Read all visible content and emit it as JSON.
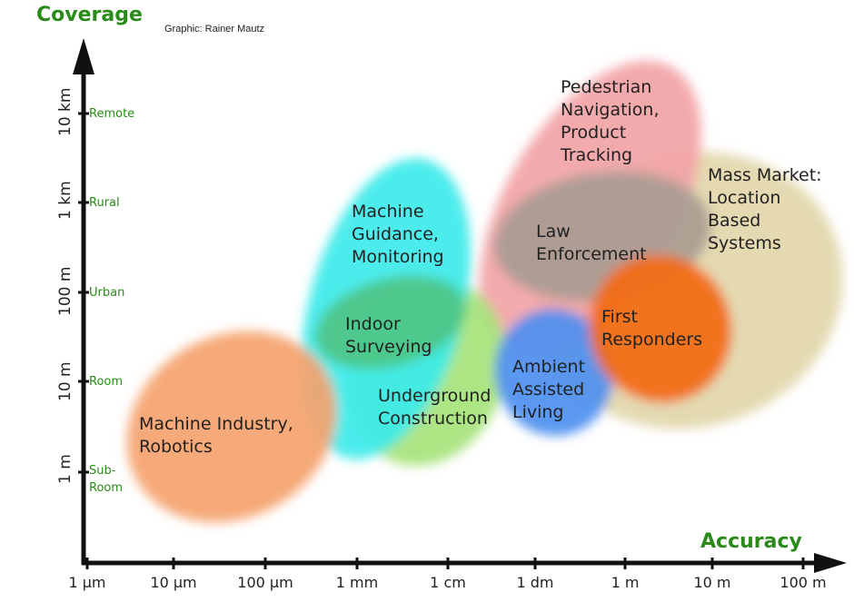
{
  "header": {
    "y_axis_title": "Coverage",
    "x_axis_title": "Accuracy",
    "credit": "Graphic: Rainer Mautz"
  },
  "y_axis": {
    "ticks": [
      {
        "value": "10 km",
        "category": "Remote"
      },
      {
        "value": "1 km",
        "category": "Rural"
      },
      {
        "value": "100 m",
        "category": "Urban"
      },
      {
        "value": "10 m",
        "category": "Room"
      },
      {
        "value": "1 m",
        "category": "Sub-\nRoom"
      }
    ]
  },
  "x_axis": {
    "ticks": [
      "1 µm",
      "10 µm",
      "100 µm",
      "1 mm",
      "1 cm",
      "1 dm",
      "1 m",
      "10 m",
      "100 m"
    ]
  },
  "regions": [
    {
      "id": "mass-market",
      "label": "Mass Market:\nLocation\nBased\nSystems",
      "color": "#e2d6aa"
    },
    {
      "id": "pedestrian",
      "label": "Pedestrian\nNavigation,\nProduct\nTracking",
      "color": "#f2a3a6"
    },
    {
      "id": "law-enforcement",
      "label": "Law\nEnforcement",
      "color": "#a99c92"
    },
    {
      "id": "ambient",
      "label": "Ambient\nAssisted\nLiving",
      "color": "#4d8ff0"
    },
    {
      "id": "first-responders",
      "label": "First\nResponders",
      "color": "#f36a12"
    },
    {
      "id": "underground",
      "label": "Underground\nConstruction",
      "color": "#a6e37b"
    },
    {
      "id": "machine-guidance",
      "label": "Machine\nGuidance,\nMonitoring",
      "color": "#3ceaea"
    },
    {
      "id": "indoor-surveying",
      "label": "Indoor\nSurveying",
      "color": "#4fc585"
    },
    {
      "id": "machine-industry",
      "label": "Machine Industry,\nRobotics",
      "color": "#f5a26e"
    }
  ]
}
